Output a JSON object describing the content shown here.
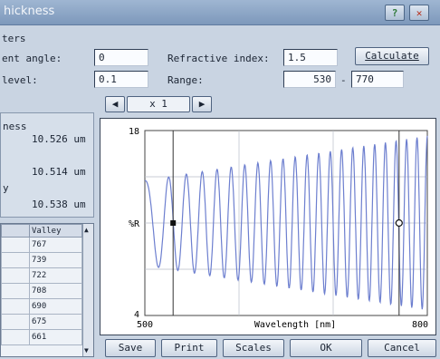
{
  "window": {
    "title": "hickness"
  },
  "params": {
    "section_label": "ters",
    "angle_label": "ent angle:",
    "angle_value": "0",
    "level_label": "level:",
    "level_value": "0.1",
    "refr_label": "Refractive index:",
    "refr_value": "1.5",
    "range_label": "Range:",
    "range_min": "530",
    "range_dash": "-",
    "range_max": "770",
    "calculate_label": "Calculate"
  },
  "zoom": {
    "prev": "◀",
    "label": "x 1",
    "next": "▶"
  },
  "results": {
    "title": "ness",
    "v1": "10.526 um",
    "v2": "10.514 um",
    "y_label": "y",
    "v3": "10.538 um"
  },
  "table": {
    "header_a": "",
    "header_b": "Valley",
    "rows": [
      {
        "a": "",
        "b": "767"
      },
      {
        "a": "",
        "b": "739"
      },
      {
        "a": "",
        "b": "722"
      },
      {
        "a": "",
        "b": "708"
      },
      {
        "a": "",
        "b": "690"
      },
      {
        "a": "",
        "b": "675"
      },
      {
        "a": "",
        "b": "661"
      }
    ]
  },
  "chart_data": {
    "type": "line",
    "title": "",
    "xlabel": "Wavelength [nm]",
    "ylabel": "%R",
    "xlim": [
      500,
      800
    ],
    "ylim": [
      4,
      18
    ],
    "x_ticks": [
      "500",
      "800"
    ],
    "y_ticks": [
      "18",
      "%R",
      "4"
    ],
    "markers": [
      {
        "type": "filled-square",
        "x": 530
      },
      {
        "type": "open-circle",
        "x": 770
      }
    ],
    "series": [
      {
        "color": "#6d7fcf",
        "samples": {
          "x_start": 500,
          "x_end": 800,
          "x_step": 2
        },
        "fringe_count": 22,
        "center": 11,
        "amplitude_start": 3.2,
        "amplitude_end": 6.6
      }
    ]
  },
  "buttons": {
    "save": "Save",
    "print": "Print",
    "scales": "Scales",
    "ok": "OK",
    "cancel": "Cancel"
  },
  "colors": {
    "titlebar": "#8aa3c4",
    "trace": "#6d7fcf",
    "help_icon": "#2f7a3a",
    "close_icon": "#b8321e"
  },
  "icons": {
    "help": "help-icon",
    "close": "close-icon"
  }
}
